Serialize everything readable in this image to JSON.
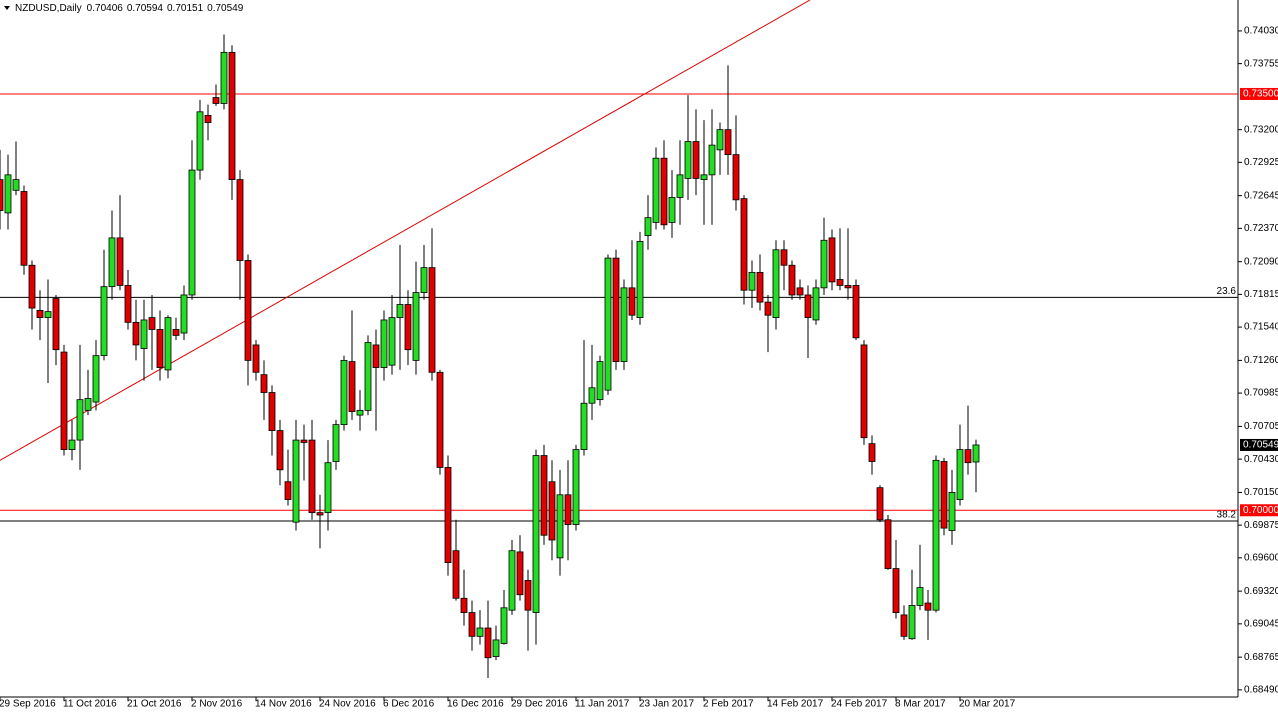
{
  "chart_data": {
    "type": "candlestick",
    "title": "NZDUSD,Daily",
    "categories": [
      "29 Sep 2016",
      null,
      null,
      null,
      null,
      null,
      null,
      null,
      "11 Oct 2016",
      null,
      null,
      null,
      null,
      null,
      null,
      null,
      "21 Oct 2016",
      null,
      null,
      null,
      null,
      null,
      null,
      null,
      "2 Nov 2016",
      null,
      null,
      null,
      null,
      null,
      null,
      null,
      "14 Nov 2016",
      null,
      null,
      null,
      null,
      null,
      null,
      null,
      "24 Nov 2016",
      null,
      null,
      null,
      null,
      null,
      null,
      null,
      "6 Dec 2016",
      null,
      null,
      null,
      null,
      null,
      null,
      null,
      "16 Dec 2016",
      null,
      null,
      null,
      null,
      null,
      null,
      null,
      "29 Dec 2016",
      null,
      null,
      null,
      null,
      null,
      null,
      null,
      "11 Jan 2017",
      null,
      null,
      null,
      null,
      null,
      null,
      null,
      "23 Jan 2017",
      null,
      null,
      null,
      null,
      null,
      null,
      null,
      "2 Feb 2017",
      null,
      null,
      null,
      null,
      null,
      null,
      null,
      "14 Feb 2017",
      null,
      null,
      null,
      null,
      null,
      null,
      null,
      "24 Feb 2017",
      null,
      null,
      null,
      null,
      null,
      null,
      null,
      "8 Mar 2017",
      null,
      null,
      null,
      null,
      null,
      null,
      null,
      "20 Mar 2017",
      null,
      null
    ],
    "open": [
      0.7278,
      0.725,
      0.7269,
      0.7268,
      0.7206,
      0.7168,
      0.7162,
      0.7178,
      0.7133,
      0.7051,
      0.7059,
      0.7084,
      0.7091,
      0.713,
      0.7188,
      0.7229,
      0.7189,
      0.7158,
      0.7136,
      0.7162,
      0.7152,
      0.7118,
      0.7152,
      0.7149,
      0.7181,
      0.7286,
      0.7332,
      0.7347,
      0.7342,
      0.7385,
      0.7278,
      0.721,
      0.7139,
      0.7114,
      0.7099,
      0.7067,
      0.7024,
      0.699,
      0.7059,
      0.7059,
      0.6998,
      0.6998,
      0.7041,
      0.7072,
      0.7125,
      0.708,
      0.7084,
      0.7139,
      0.712,
      0.7122,
      0.7162,
      0.7173,
      0.7126,
      0.7183,
      0.7204,
      0.7116,
      0.7036,
      0.6966,
      0.6926,
      0.6914,
      0.6894,
      0.6901,
      0.6877,
      0.6888,
      0.6916,
      0.6965,
      0.6941,
      0.6914,
      0.7046,
      0.7024,
      0.696,
      0.7013,
      0.6988,
      0.7051,
      0.709,
      0.7093,
      0.7101,
      0.7212,
      0.7125,
      0.7187,
      0.7162,
      0.7231,
      0.7242,
      0.7296,
      0.7242,
      0.7263,
      0.7279,
      0.731,
      0.7278,
      0.7282,
      0.7303,
      0.732,
      0.7299,
      0.7262,
      0.7185,
      0.72,
      0.7175,
      0.7162,
      0.7219,
      0.7206,
      0.7187,
      0.7181,
      0.716,
      0.7187,
      0.7229,
      0.7194,
      0.7189,
      0.7189,
      0.7139,
      0.7056,
      0.7019,
      0.6992,
      0.6951,
      0.6912,
      0.6892,
      0.692,
      0.6922,
      0.6916,
      0.7041,
      0.6983,
      0.7009,
      0.7051,
      0.70406
    ],
    "high": [
      0.7303,
      0.7299,
      0.731,
      0.7273,
      0.721,
      0.7185,
      0.7194,
      0.7181,
      0.7139,
      0.7076,
      0.7139,
      0.7118,
      0.7143,
      0.7219,
      0.7252,
      0.7265,
      0.7202,
      0.7177,
      0.7177,
      0.7181,
      0.7168,
      0.7164,
      0.7162,
      0.7189,
      0.7311,
      0.7345,
      0.7341,
      0.7358,
      0.74,
      0.7391,
      0.7286,
      0.7215,
      0.7143,
      0.7126,
      0.7105,
      0.7076,
      0.7051,
      0.7076,
      0.7072,
      0.7076,
      0.7013,
      0.7059,
      0.7076,
      0.713,
      0.7168,
      0.7101,
      0.7147,
      0.7152,
      0.7168,
      0.7181,
      0.7223,
      0.7185,
      0.7209,
      0.7223,
      0.7237,
      0.7118,
      0.7046,
      0.6992,
      0.695,
      0.6924,
      0.6916,
      0.6924,
      0.6903,
      0.6933,
      0.6975,
      0.6979,
      0.695,
      0.7051,
      0.7055,
      0.7042,
      0.7034,
      0.7042,
      0.7055,
      0.7143,
      0.7139,
      0.713,
      0.7215,
      0.7219,
      0.7194,
      0.7227,
      0.7234,
      0.7265,
      0.7305,
      0.7311,
      0.7286,
      0.7311,
      0.7349,
      0.7337,
      0.7328,
      0.7337,
      0.7326,
      0.7374,
      0.7332,
      0.7265,
      0.721,
      0.7215,
      0.7181,
      0.7227,
      0.7227,
      0.721,
      0.7194,
      0.7189,
      0.7194,
      0.7246,
      0.7236,
      0.7237,
      0.7237,
      0.7194,
      0.7143,
      0.7063,
      0.7021,
      0.6996,
      0.6975,
      0.692,
      0.695,
      0.6971,
      0.6933,
      0.7046,
      0.7044,
      0.7034,
      0.7072,
      0.7088,
      0.70594
    ],
    "low": [
      0.7236,
      0.7236,
      0.7265,
      0.7198,
      0.7152,
      0.7143,
      0.7107,
      0.7122,
      0.7046,
      0.7042,
      0.7034,
      0.708,
      0.7084,
      0.7126,
      0.7177,
      0.7185,
      0.7152,
      0.7126,
      0.7109,
      0.7118,
      0.7109,
      0.7111,
      0.7143,
      0.7143,
      0.7177,
      0.7278,
      0.7311,
      0.734,
      0.7337,
      0.7261,
      0.7177,
      0.7105,
      0.7109,
      0.7076,
      0.7046,
      0.7021,
      0.7004,
      0.6983,
      0.7025,
      0.6992,
      0.6968,
      0.6983,
      0.7034,
      0.7067,
      0.7076,
      0.7067,
      0.708,
      0.7067,
      0.7109,
      0.7114,
      0.7118,
      0.7122,
      0.7114,
      0.7177,
      0.7109,
      0.703,
      0.6945,
      0.6924,
      0.6903,
      0.6882,
      0.6887,
      0.6859,
      0.6874,
      0.6887,
      0.6912,
      0.6924,
      0.6882,
      0.6887,
      0.6971,
      0.6958,
      0.6945,
      0.6958,
      0.6983,
      0.7046,
      0.7076,
      0.7088,
      0.7097,
      0.7118,
      0.7118,
      0.716,
      0.7156,
      0.7219,
      0.7236,
      0.7236,
      0.7229,
      0.724,
      0.7261,
      0.7265,
      0.724,
      0.724,
      0.7282,
      0.7282,
      0.7252,
      0.7173,
      0.717,
      0.7168,
      0.7133,
      0.7152,
      0.7185,
      0.7177,
      0.7177,
      0.7128,
      0.7156,
      0.7181,
      0.7185,
      0.7185,
      0.7177,
      0.7143,
      0.7055,
      0.703,
      0.699,
      0.695,
      0.6909,
      0.6891,
      0.6891,
      0.6916,
      0.6891,
      0.6914,
      0.6979,
      0.6971,
      0.7004,
      0.703,
      0.70151
    ],
    "close": [
      0.7252,
      0.7282,
      0.7278,
      0.7206,
      0.717,
      0.7162,
      0.7167,
      0.7135,
      0.7051,
      0.7059,
      0.7093,
      0.7094,
      0.713,
      0.7188,
      0.7229,
      0.7189,
      0.7158,
      0.7139,
      0.716,
      0.7152,
      0.712,
      0.7162,
      0.7147,
      0.7181,
      0.7286,
      0.7335,
      0.7326,
      0.7342,
      0.7385,
      0.7278,
      0.721,
      0.7126,
      0.7116,
      0.7099,
      0.7067,
      0.7034,
      0.7009,
      0.7059,
      0.7057,
      0.6998,
      0.6996,
      0.704,
      0.7072,
      0.7126,
      0.7083,
      0.7084,
      0.7141,
      0.712,
      0.716,
      0.7162,
      0.7173,
      0.7135,
      0.7183,
      0.7204,
      0.7116,
      0.7036,
      0.6956,
      0.6926,
      0.6914,
      0.6894,
      0.6901,
      0.6876,
      0.6891,
      0.6918,
      0.6966,
      0.6929,
      0.6916,
      0.7046,
      0.6979,
      0.6975,
      0.7013,
      0.6988,
      0.7051,
      0.709,
      0.7103,
      0.7125,
      0.7212,
      0.7125,
      0.7187,
      0.7164,
      0.7226,
      0.7246,
      0.7296,
      0.724,
      0.7263,
      0.7282,
      0.731,
      0.7279,
      0.7282,
      0.7307,
      0.732,
      0.7299,
      0.7261,
      0.7185,
      0.72,
      0.7175,
      0.7164,
      0.7219,
      0.7206,
      0.7181,
      0.7181,
      0.7162,
      0.7187,
      0.7227,
      0.7192,
      0.7189,
      0.7187,
      0.7145,
      0.7061,
      0.7041,
      0.6992,
      0.6951,
      0.6914,
      0.6894,
      0.692,
      0.6935,
      0.6916,
      0.7042,
      0.6985,
      0.7015,
      0.7051,
      0.704,
      0.70549
    ],
    "up_color": "#22dd22",
    "down_color": "#e00000",
    "ylim": [
      0.6843,
      0.7429
    ],
    "yticks": [
      {
        "value": 0.7403,
        "label": "0.74030"
      },
      0.73755,
      {
        "value": 0.732,
        "label": "0.73200"
      },
      0.72925,
      0.72645,
      {
        "value": 0.7237,
        "label": "0.72370"
      },
      {
        "value": 0.7209,
        "label": "0.72090"
      },
      0.71815,
      {
        "value": 0.7154,
        "label": "0.71540"
      },
      {
        "value": 0.7126,
        "label": "0.71260"
      },
      0.70985,
      0.70705,
      {
        "value": 0.7043,
        "label": "0.70430"
      },
      {
        "value": 0.7015,
        "label": "0.70150"
      },
      0.69875,
      {
        "value": 0.696,
        "label": "0.69600"
      },
      {
        "value": 0.6932,
        "label": "0.69320"
      },
      0.69045,
      0.68765,
      {
        "value": 0.6849,
        "label": "0.68490"
      }
    ],
    "price_lines": [
      {
        "value": 0.735,
        "label": "0.73500",
        "color": "#ff0000"
      },
      {
        "value": 0.7,
        "label": "0.70000",
        "color": "#ff0000"
      }
    ],
    "fib_levels": [
      {
        "value": 0.7179,
        "label": "23.6"
      },
      {
        "value": 0.6991,
        "label": "38.2"
      }
    ],
    "trendline": {
      "x": [
        0,
        101.25
      ],
      "y": [
        0.7042,
        0.7429
      ],
      "color": "#dd0000"
    }
  }
}
